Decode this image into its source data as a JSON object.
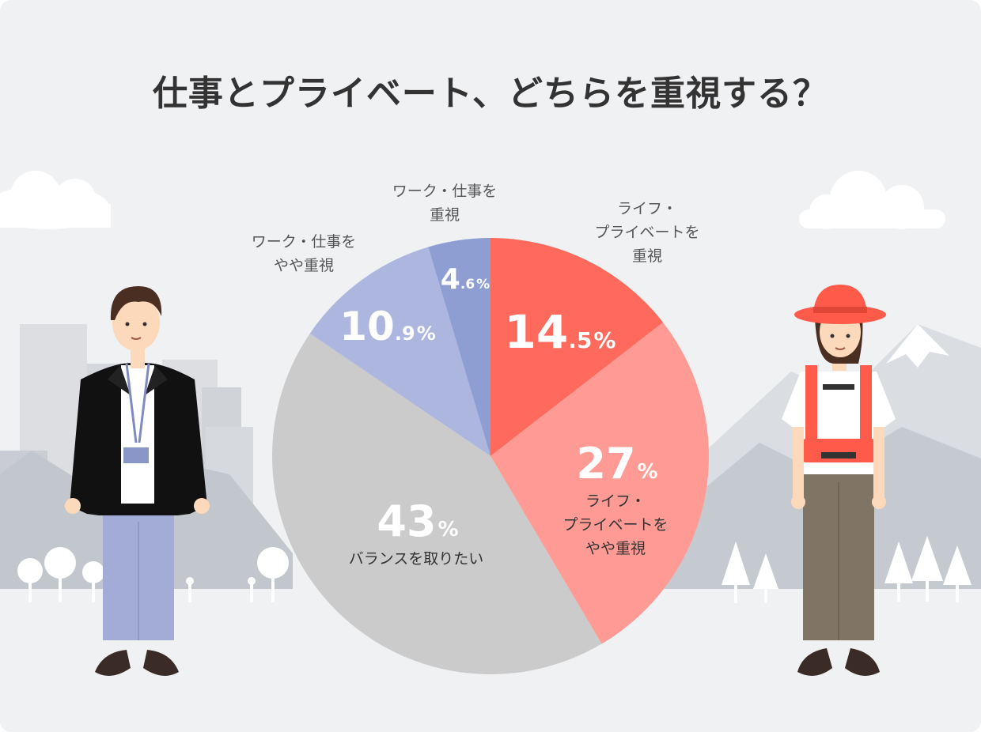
{
  "title": "仕事とプライベート、どちらを重視する？",
  "chart_data": {
    "type": "pie",
    "title": "仕事とプライベート、どちらを重視する？",
    "start_angle_deg": 0,
    "direction": "clockwise",
    "slices": [
      {
        "key": "life",
        "label_lines": [
          "ライフ・",
          "プライベートを",
          "重視"
        ],
        "value": 14.5,
        "int": "14",
        "dec": ".5",
        "color": "#ff6a5c",
        "label_color": "#555555"
      },
      {
        "key": "life_somewhat",
        "label_lines": [
          "ライフ・",
          "プライベートを",
          "やや重視"
        ],
        "value": 27,
        "int": "27",
        "dec": "",
        "color": "#ff9a94",
        "label_color": "#333333"
      },
      {
        "key": "balance",
        "label_lines": [
          "バランスを取りたい"
        ],
        "value": 43,
        "int": "43",
        "dec": "",
        "color": "#cbcbcb",
        "label_color": "#333333"
      },
      {
        "key": "work_somewhat",
        "label_lines": [
          "ワーク・仕事を",
          "やや重視"
        ],
        "value": 10.9,
        "int": "10",
        "dec": ".9",
        "color": "#acb6df",
        "label_color": "#555555"
      },
      {
        "key": "work",
        "label_lines": [
          "ワーク・仕事を",
          "重視"
        ],
        "value": 4.6,
        "int": "4",
        "dec": ".6",
        "color": "#8e9ed2",
        "label_color": "#555555"
      }
    ],
    "percent_sign": "%"
  }
}
